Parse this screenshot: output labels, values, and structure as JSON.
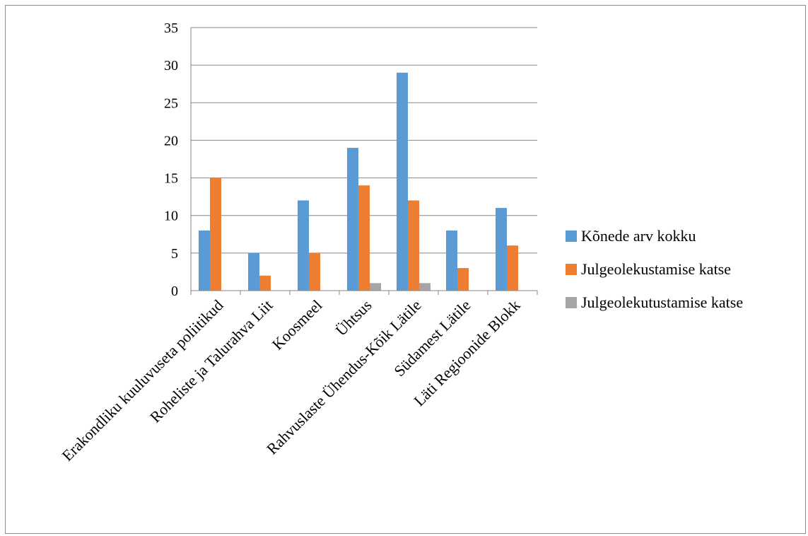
{
  "chart_data": {
    "type": "bar",
    "title": "",
    "xlabel": "",
    "ylabel": "",
    "ylim": [
      0,
      35
    ],
    "yticks": [
      0,
      5,
      10,
      15,
      20,
      25,
      30,
      35
    ],
    "grid": true,
    "legend_position": "right",
    "categories": [
      "Erakondliku kuuluvuseta poliitikud",
      "Roheliste ja Talurahva Liit",
      "Koosmeel",
      "Ühtsus",
      "Rahvuslaste Ühendus-Kõik Lätile",
      "Südamest Lätile",
      "Läti Regioonide Blokk"
    ],
    "series": [
      {
        "name": "Kõnede arv kokku",
        "color": "#5b9bd5",
        "values": [
          8,
          5,
          12,
          19,
          29,
          8,
          11
        ]
      },
      {
        "name": "Julgeolekustamise katse",
        "color": "#ed7d31",
        "values": [
          15,
          2,
          5,
          14,
          12,
          3,
          6
        ]
      },
      {
        "name": "Julgeolekutustamise katse",
        "color": "#a5a5a5",
        "values": [
          0,
          0,
          0,
          1,
          1,
          0,
          0
        ]
      }
    ]
  }
}
